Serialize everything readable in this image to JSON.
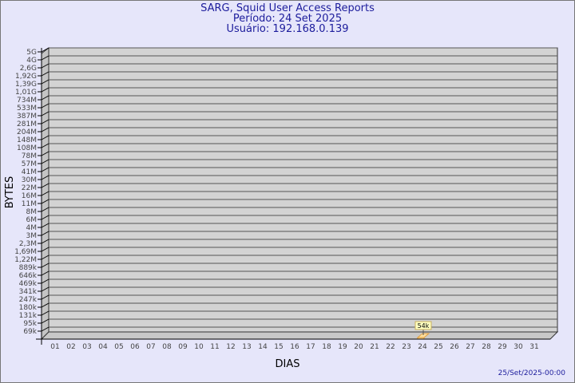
{
  "chart_data": {
    "type": "bar",
    "title": "SARG, Squid User Access Reports",
    "subtitle_period": "Período: 24 Set 2025",
    "subtitle_user": "Usuário: 192.168.0.139",
    "xlabel": "DIAS",
    "ylabel": "BYTES",
    "y_scale": "log",
    "y_tick_labels": [
      "5G",
      "4G",
      "2,6G",
      "1,92G",
      "1,39G",
      "1,01G",
      "734M",
      "533M",
      "387M",
      "281M",
      "204M",
      "148M",
      "108M",
      "78M",
      "57M",
      "41M",
      "30M",
      "22M",
      "16M",
      "11M",
      "8M",
      "6M",
      "4M",
      "3M",
      "2,3M",
      "1,69M",
      "1,22M",
      "889k",
      "646k",
      "469k",
      "341k",
      "247k",
      "180k",
      "131k",
      "95k",
      "69k"
    ],
    "categories": [
      "01",
      "02",
      "03",
      "04",
      "05",
      "06",
      "07",
      "08",
      "09",
      "10",
      "11",
      "12",
      "13",
      "14",
      "15",
      "16",
      "17",
      "18",
      "19",
      "20",
      "21",
      "22",
      "23",
      "24",
      "25",
      "26",
      "27",
      "28",
      "29",
      "30",
      "31"
    ],
    "values": [
      null,
      null,
      null,
      null,
      null,
      null,
      null,
      null,
      null,
      null,
      null,
      null,
      null,
      null,
      null,
      null,
      null,
      null,
      null,
      null,
      null,
      null,
      null,
      54000,
      null,
      null,
      null,
      null,
      null,
      null,
      null
    ],
    "data_labels": {
      "24": "54k"
    },
    "grid": true,
    "colors": {
      "plot_bg": "#d3d3d3",
      "bar": "#ffd58a",
      "label_bg": "#ffffc0",
      "title": "#1c1c9c"
    }
  },
  "footer": {
    "timestamp": "25/Set/2025-00:00"
  }
}
